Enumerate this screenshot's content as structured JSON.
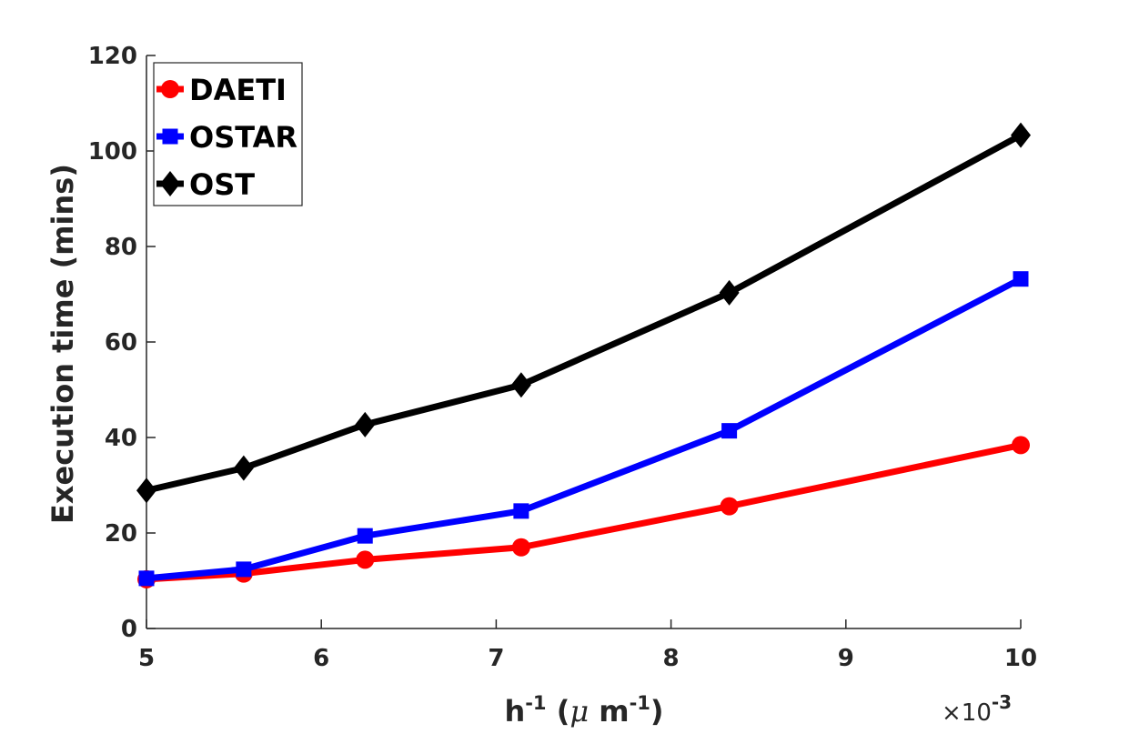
{
  "chart_data": {
    "type": "line",
    "title": "",
    "xlabel": {
      "base": "h",
      "sup1": "-1",
      "mid": " (",
      "mu": "μ",
      "unit": " m",
      "sup2": "-1",
      "end": ")"
    },
    "ylabel": "Execution time (mins)",
    "x_exponent": {
      "prefix": "×10",
      "power": "-3"
    },
    "xlim": [
      5,
      10
    ],
    "ylim": [
      0,
      120
    ],
    "xticks": [
      5,
      6,
      7,
      8,
      9,
      10
    ],
    "yticks": [
      0,
      20,
      40,
      60,
      80,
      100,
      120
    ],
    "x": [
      5,
      5.556,
      6.25,
      7.143,
      8.333,
      10
    ],
    "series": [
      {
        "name": "DAETI",
        "color": "#ff0000",
        "marker": "circle",
        "values": [
          10.3,
          11.5,
          14.4,
          17.0,
          25.6,
          38.4
        ]
      },
      {
        "name": "OSTAR",
        "color": "#0000ff",
        "marker": "square",
        "values": [
          10.5,
          12.4,
          19.4,
          24.6,
          41.4,
          73.2
        ]
      },
      {
        "name": "OST",
        "color": "#000000",
        "marker": "diamond",
        "values": [
          28.9,
          33.6,
          42.7,
          51.0,
          70.3,
          103.3
        ]
      }
    ],
    "legend_position": "top-left",
    "grid": false
  }
}
